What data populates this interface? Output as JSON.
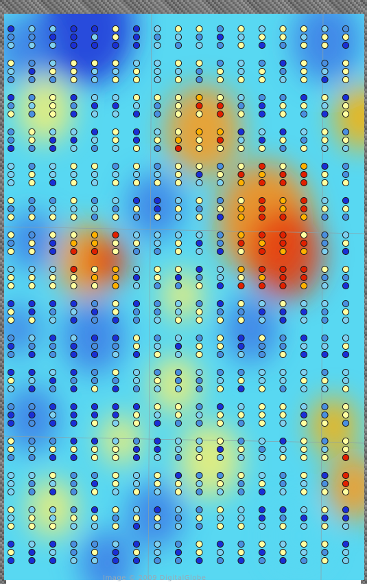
{
  "map": {
    "attribution": "Image © 2009 DigitalGlobe",
    "colors": {
      "very_low": "#1a2fd6",
      "low": "#4a8fe0",
      "mid_low": "#7fd0f0",
      "mid": "#ffffa0",
      "mid_high": "#ffb000",
      "high": "#e02000",
      "frame_texture": "#6f6f6f"
    },
    "heat_levels": [
      {
        "name": "deep-blue",
        "color": "#1d34d8"
      },
      {
        "name": "blue",
        "color": "#3d7de6"
      },
      {
        "name": "cyan",
        "color": "#58d8f2"
      },
      {
        "name": "yellow",
        "color": "#f5f070"
      },
      {
        "name": "orange",
        "color": "#ff9a14"
      },
      {
        "name": "red",
        "color": "#e43a10"
      }
    ],
    "point_legend_values": [
      "very-low",
      "low",
      "mid-low",
      "mid",
      "mid-high",
      "high"
    ]
  }
}
